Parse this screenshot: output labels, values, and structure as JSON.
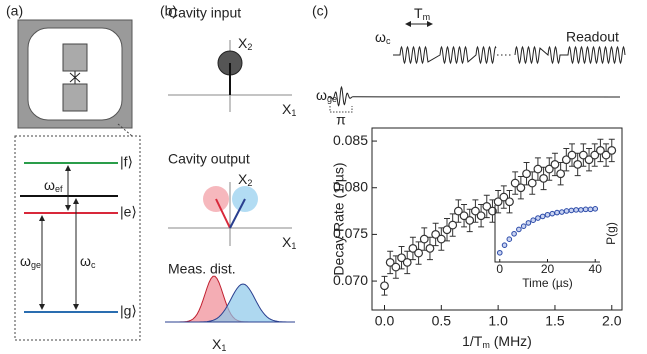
{
  "panel_a": {
    "label": "(a)",
    "levels": [
      "|f⟩",
      "|e⟩",
      "|g⟩"
    ],
    "transitions": [
      {
        "symbol": "ω",
        "sub": "ef"
      },
      {
        "symbol": "ω",
        "sub": "ge"
      },
      {
        "symbol": "ω",
        "sub": "c"
      }
    ]
  },
  "panel_b": {
    "label": "(b)",
    "input_title": "Cavity input",
    "output_title": "Cavity output",
    "dist_title": "Meas. dist.",
    "axis_x": {
      "symbol": "X",
      "sub": "1"
    },
    "axis_y": {
      "symbol": "X",
      "sub": "2"
    }
  },
  "panel_c": {
    "label": "(c)",
    "cavity": {
      "symbol": "ω",
      "sub": "c"
    },
    "period": {
      "symbol": "T",
      "sub": "m"
    },
    "readout": "Readout",
    "qubit": {
      "symbol": "ω",
      "sub": "ge"
    },
    "pulse": "π"
  },
  "chart_data": [
    {
      "type": "scatter",
      "y_label": "Decay Rate (1/µs)",
      "x_label": {
        "text": "1/T",
        "sub": "m",
        "tail": " (MHz)"
      },
      "xlim": [
        -0.11,
        2.09
      ],
      "ylim": [
        0.0669,
        0.0864
      ],
      "xticks": [
        {
          "value": 0,
          "label": "0.0"
        },
        0.5,
        {
          "value": 1,
          "label": "1.0"
        },
        1.5,
        {
          "value": 2,
          "label": "2.0"
        }
      ],
      "yticks": [
        {
          "value": 0.07,
          "label": "0.070"
        },
        0.075,
        {
          "value": 0.08,
          "label": "0.080"
        },
        0.085
      ],
      "color": "#333333",
      "x": [
        0,
        0.05,
        0.1,
        0.15,
        0.2,
        0.25,
        0.3,
        0.35,
        0.4,
        0.45,
        0.5,
        0.55,
        0.6,
        0.65,
        0.7,
        0.75,
        0.8,
        0.85,
        0.9,
        0.95,
        1,
        1.05,
        1.1,
        1.15,
        1.2,
        1.25,
        1.3,
        1.35,
        1.4,
        1.45,
        1.5,
        1.55,
        1.6,
        1.65,
        1.7,
        1.75,
        1.8,
        1.85,
        1.9,
        1.95,
        2
      ],
      "values": [
        0.0695,
        0.072,
        0.0715,
        0.0725,
        0.072,
        0.0735,
        0.073,
        0.0745,
        0.0735,
        0.075,
        0.0745,
        0.0755,
        0.076,
        0.0775,
        0.077,
        0.0765,
        0.0775,
        0.077,
        0.078,
        0.0775,
        0.0785,
        0.079,
        0.0785,
        0.0805,
        0.08,
        0.0815,
        0.0805,
        0.082,
        0.081,
        0.082,
        0.0825,
        0.0815,
        0.083,
        0.0835,
        0.0825,
        0.0835,
        0.083,
        0.0835,
        0.084,
        0.0835,
        0.084
      ],
      "errors": [
        0.001,
        0.0012,
        0.0012,
        0.0012,
        0.0012,
        0.0012,
        0.0012,
        0.0012,
        0.0012,
        0.0012,
        0.0012,
        0.0012,
        0.0012,
        0.0012,
        0.0012,
        0.0012,
        0.0012,
        0.0012,
        0.0012,
        0.0012,
        0.0012,
        0.0012,
        0.0012,
        0.0012,
        0.0012,
        0.0012,
        0.0012,
        0.0012,
        0.0012,
        0.0012,
        0.0012,
        0.0012,
        0.0012,
        0.0012,
        0.0012,
        0.0012,
        0.0012,
        0.0012,
        0.0012,
        0.0012,
        0.0012
      ]
    },
    {
      "type": "scatter",
      "y_label": "P(g)",
      "x_label": "Time (µs)",
      "xlim": [
        -2,
        42
      ],
      "ylim": [
        0,
        1.05
      ],
      "xticks": [
        0,
        20,
        40
      ],
      "color": "#2b4aa8",
      "x": [
        0,
        2,
        4,
        6,
        8,
        10,
        12,
        14,
        16,
        18,
        20,
        22,
        24,
        26,
        28,
        30,
        32,
        34,
        36,
        38,
        40
      ],
      "values": [
        0.17,
        0.31,
        0.42,
        0.52,
        0.6,
        0.66,
        0.72,
        0.77,
        0.81,
        0.84,
        0.87,
        0.89,
        0.91,
        0.92,
        0.94,
        0.95,
        0.96,
        0.96,
        0.97,
        0.97,
        0.98
      ]
    }
  ]
}
